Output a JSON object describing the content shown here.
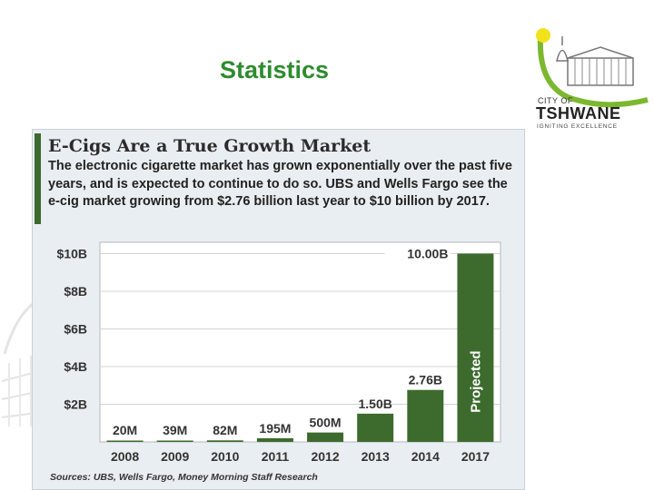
{
  "slide": {
    "title": "Statistics"
  },
  "logo": {
    "line1": "CITY OF",
    "line2": "TSHWANE",
    "tagline": "IGNITING EXCELLENCE"
  },
  "panel": {
    "title": "E-Cigs Are a True Growth Market",
    "description": "The electronic cigarette market has grown exponentially over the past five years, and is expected to continue to do so. UBS and Wells Fargo see the e-cig market growing from $2.76 billion last year to $10 billion by 2017.",
    "source": "Sources: UBS, Wells Fargo, Money Morning Staff Research"
  },
  "colors": {
    "title_green": "#2e8b2e",
    "bar_green": "#3d6b2e",
    "panel_bg": "#e9eef2"
  },
  "chart_data": {
    "type": "bar",
    "categories": [
      "2008",
      "2009",
      "2010",
      "2011",
      "2012",
      "2013",
      "2014",
      "2017"
    ],
    "values": [
      0.02,
      0.039,
      0.082,
      0.195,
      0.5,
      1.5,
      2.76,
      10.0
    ],
    "data_labels": [
      "20M",
      "39M",
      "82M",
      "195M",
      "500M",
      "1.50B",
      "2.76B",
      "10.00B"
    ],
    "y_ticks": [
      2,
      4,
      6,
      8,
      10
    ],
    "y_tick_labels": [
      "$2B",
      "$4B",
      "$6B",
      "$8B",
      "$10B"
    ],
    "ylim": [
      0,
      10.6
    ],
    "annotation": "Projected",
    "grid": true,
    "legend": "none"
  }
}
